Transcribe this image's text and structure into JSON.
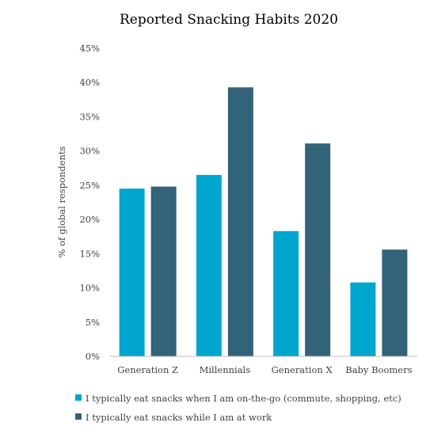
{
  "chart_data": {
    "type": "bar",
    "title": "Reported Snacking Habits 2020",
    "ylabel": "% of global respondents",
    "xlabel": "",
    "categories": [
      "Generation Z",
      "Millennials",
      "Generation X",
      "Baby Boomers"
    ],
    "yticks": [
      "0%",
      "5%",
      "10%",
      "15%",
      "20%",
      "25%",
      "30%",
      "35%",
      "40%",
      "45%"
    ],
    "ylim": [
      0,
      45
    ],
    "grid": false,
    "legend_position": "bottom",
    "series": [
      {
        "name": "I typically eat snacks when I am on-the-go (commute, shopping, etc)",
        "color": "#00a6ce",
        "values": [
          24.5,
          26.5,
          18.3,
          10.8
        ]
      },
      {
        "name": "I typically eat snacks while I am at work",
        "color": "#336379",
        "values": [
          24.8,
          39.3,
          31.1,
          15.6
        ]
      }
    ]
  }
}
